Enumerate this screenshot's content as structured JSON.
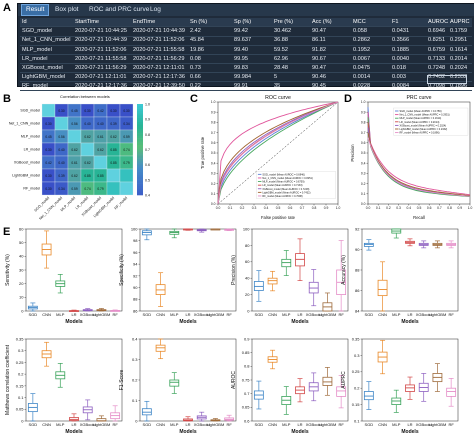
{
  "panels": {
    "a": "A",
    "b": "B",
    "c": "C",
    "d": "D",
    "e": "E"
  },
  "app": {
    "tabs": [
      "Result",
      "Box plot",
      "ROC and PRC curve",
      "Log"
    ],
    "active_tab": "Result",
    "columns": [
      "Id",
      "StartTime",
      "EndTime",
      "Sn (%)",
      "Sp (%)",
      "Pre (%)",
      "Acc (%)",
      "MCC",
      "F1",
      "AUROC",
      "AUPRC"
    ],
    "rows": [
      [
        "SGD_model",
        "2020-07-21 10:44:25",
        "2020-07-21 10:44:39",
        "2.42",
        "99.42",
        "30.462",
        "90.47",
        "0.058",
        "0.0431",
        "0.6946",
        "0.1759"
      ],
      [
        "Net_1_CNN_model",
        "2020-07-21 10:44:39",
        "2020-07-21 11:52:06",
        "45.84",
        "89.637",
        "36.88",
        "86.11",
        "0.2862",
        "0.3566",
        "0.8251",
        "0.2951"
      ],
      [
        "MLP_model",
        "2020-07-21 11:52:06",
        "2020-07-21 11:55:58",
        "19.86",
        "99.40",
        "59.52",
        "91.82",
        "0.1952",
        "0.1885",
        "0.6759",
        "0.1614"
      ],
      [
        "LR_model",
        "2020-07-21 11:55:58",
        "2020-07-21 11:56:29",
        "0.08",
        "99.95",
        "62.96",
        "90.67",
        "0.0067",
        "0.0040",
        "0.7133",
        "0.2014"
      ],
      [
        "XGBoost_model",
        "2020-07-21 11:56:29",
        "2020-07-21 12:11:01",
        "0.73",
        "99.83",
        "28.48",
        "90.47",
        "0.0475",
        "0.018",
        "0.7248",
        "0.2024"
      ],
      [
        "LightGBM_model",
        "2020-07-21 12:11:01",
        "2020-07-21 12:17:36",
        "0.66",
        "99.984",
        "5",
        "90.46",
        "0.0014",
        "0.003",
        "0.7432",
        "0.2332"
      ],
      [
        "RF_model",
        "2020-07-21 12:17:36",
        "2020-07-21 12:39:50",
        "0.22",
        "99.91",
        "35",
        "90.45",
        "0.0228",
        "0.0084",
        "0.7098",
        "0.1896"
      ]
    ]
  },
  "heatmap": {
    "title": "Correlation between models",
    "labels": [
      "SGD_model",
      "Net_1_CNN_model",
      "MLP_model",
      "LR_model",
      "XGBoost_model",
      "LightGBM_model",
      "RF_model"
    ],
    "values": [
      [
        1,
        0.3,
        0.45,
        0.3,
        0.42,
        0.3,
        0.3
      ],
      [
        0.3,
        1,
        0.56,
        0.4,
        0.4,
        0.39,
        0.34
      ],
      [
        0.45,
        0.56,
        1,
        0.62,
        0.61,
        0.62,
        0.59
      ],
      [
        0.3,
        0.4,
        0.62,
        1,
        0.62,
        0.85,
        0.74
      ],
      [
        0.42,
        0.4,
        0.61,
        0.62,
        1,
        0.85,
        0.79
      ],
      [
        0.3,
        0.39,
        0.62,
        0.85,
        0.85,
        1,
        0.95
      ],
      [
        0.3,
        0.34,
        0.59,
        0.74,
        0.79,
        0.95,
        1
      ]
    ],
    "colorbar_ticks": [
      "1.0",
      "0.9",
      "0.8",
      "0.7",
      "0.6",
      "0.5",
      "0.4"
    ]
  },
  "chart_data": [
    {
      "type": "line",
      "title": "ROC curve",
      "xlabel": "False positive rate",
      "ylabel": "True positive rate",
      "xlim": [
        0,
        1
      ],
      "ylim": [
        0,
        1
      ],
      "ticks": [
        "0.0",
        "0.1",
        "0.2",
        "0.3",
        "0.4",
        "0.5",
        "0.6",
        "0.7",
        "0.8",
        "0.9",
        "1.0"
      ],
      "legend_position": "bottom-right",
      "series": [
        {
          "name": "SGD_model (Mean AUROC = 0.6946)",
          "color": "#5b7fd6",
          "auc": 0.6946
        },
        {
          "name": "Net_1_CNN_model (Mean AUROC = 0.8251)",
          "color": "#e0559b",
          "auc": 0.8251
        },
        {
          "name": "MLP_model (Mean AUROC = 0.6759)",
          "color": "#49a860",
          "auc": 0.6759
        },
        {
          "name": "LR_model (Mean AUROC = 0.7133)",
          "color": "#d14a4a",
          "auc": 0.7133
        },
        {
          "name": "XGBoost_model (Mean AUROC = 0.7248)",
          "color": "#8f5fc2",
          "auc": 0.7248
        },
        {
          "name": "LightGBM_model (Mean AUROC = 0.7432)",
          "color": "#a0632f",
          "auc": 0.7432
        },
        {
          "name": "RF_model (Mean AUROC = 0.7098)",
          "color": "#e58ec8",
          "auc": 0.7098
        }
      ]
    },
    {
      "type": "line",
      "title": "PRC curve",
      "xlabel": "Recall",
      "ylabel": "Precision",
      "xlim": [
        0,
        1
      ],
      "ylim": [
        0,
        1
      ],
      "ticks": [
        "0.0",
        "0.1",
        "0.2",
        "0.3",
        "0.4",
        "0.5",
        "0.6",
        "0.7",
        "0.8",
        "0.9",
        "1.0"
      ],
      "legend_position": "top-right",
      "series": [
        {
          "name": "SGD_model (Mean AUPRC = 0.1759)",
          "color": "#5b7fd6",
          "auc": 0.1759
        },
        {
          "name": "Net_1_CNN_model (Mean AUPRC = 0.2951)",
          "color": "#e0559b",
          "auc": 0.2951
        },
        {
          "name": "MLP_model (Mean AUPRC = 0.1614)",
          "color": "#49a860",
          "auc": 0.1614
        },
        {
          "name": "LR_model (Mean AUPRC = 0.2014)",
          "color": "#d14a4a",
          "auc": 0.2014
        },
        {
          "name": "XGBoost_model (Mean AUPRC = 0.2024)",
          "color": "#8f5fc2",
          "auc": 0.2024
        },
        {
          "name": "LightGBM_model (Mean AUPRC = 0.2332)",
          "color": "#a0632f",
          "auc": 0.2332
        },
        {
          "name": "RF_model (Mean AUPRC = 0.1896)",
          "color": "#e58ec8",
          "auc": 0.1896
        }
      ]
    }
  ],
  "boxplots": {
    "categories": [
      "SGD",
      "CNN",
      "MLP",
      "LR",
      "XGBoost",
      "LightGBM",
      "RF"
    ],
    "xlabel": "Models",
    "colors": [
      "#3f86c7",
      "#e98a2a",
      "#3aa35b",
      "#d24848",
      "#8d5fc0",
      "#9e6a3a",
      "#e58ec8"
    ],
    "plots": [
      {
        "ylabel": "Sensitivity (%)",
        "ylim": [
          0,
          60
        ],
        "ticks": [
          0,
          10,
          20,
          30,
          40,
          50,
          60
        ],
        "medians": [
          2.5,
          45,
          20,
          0.1,
          0.7,
          0.6,
          0.2
        ],
        "q": [
          [
            1.5,
            3.5
          ],
          [
            41,
            49
          ],
          [
            18,
            22
          ],
          [
            0,
            0.3
          ],
          [
            0.4,
            1
          ],
          [
            0.3,
            1
          ],
          [
            0.1,
            0.4
          ]
        ]
      },
      {
        "ylabel": "Specificity (%)",
        "ylim": [
          86,
          100
        ],
        "ticks": [
          86,
          88,
          90,
          92,
          94,
          96,
          98,
          100
        ],
        "medians": [
          99.4,
          89.6,
          99.4,
          99.95,
          99.8,
          99.98,
          99.9
        ],
        "q": [
          [
            99,
            99.7
          ],
          [
            88.8,
            90.5
          ],
          [
            99.1,
            99.6
          ],
          [
            99.9,
            100
          ],
          [
            99.7,
            99.9
          ],
          [
            99.95,
            100
          ],
          [
            99.85,
            99.95
          ]
        ]
      },
      {
        "ylabel": "Precision (%)",
        "ylim": [
          0,
          100
        ],
        "ticks": [
          0,
          20,
          40,
          60,
          80,
          100
        ],
        "medians": [
          30,
          37,
          59,
          63,
          28,
          5,
          35
        ],
        "q": [
          [
            25,
            36
          ],
          [
            33,
            40
          ],
          [
            54,
            63
          ],
          [
            55,
            70
          ],
          [
            22,
            35
          ],
          [
            0,
            10
          ],
          [
            20,
            50
          ]
        ]
      },
      {
        "ylabel": "Accuracy (%)",
        "ylim": [
          84,
          92
        ],
        "ticks": [
          84,
          86,
          88,
          90,
          92
        ],
        "medians": [
          90.5,
          86.1,
          91.8,
          90.7,
          90.5,
          90.5,
          90.5
        ],
        "q": [
          [
            90.3,
            90.6
          ],
          [
            85.5,
            87
          ],
          [
            91.6,
            92
          ],
          [
            90.6,
            90.8
          ],
          [
            90.4,
            90.6
          ],
          [
            90.4,
            90.6
          ],
          [
            90.4,
            90.6
          ]
        ]
      },
      {
        "ylabel": "Matthews correlation coefficient",
        "ylim": [
          0,
          0.35
        ],
        "ticks": [
          0,
          0.05,
          0.1,
          0.15,
          0.2,
          0.25,
          0.3,
          0.35
        ],
        "medians": [
          0.058,
          0.286,
          0.195,
          0.007,
          0.048,
          0.001,
          0.023
        ],
        "q": [
          [
            0.04,
            0.075
          ],
          [
            0.27,
            0.3
          ],
          [
            0.18,
            0.21
          ],
          [
            0.002,
            0.015
          ],
          [
            0.035,
            0.06
          ],
          [
            0,
            0.01
          ],
          [
            0.01,
            0.035
          ]
        ]
      },
      {
        "ylabel": "F1-Score",
        "ylim": [
          0,
          0.4
        ],
        "ticks": [
          0,
          0.1,
          0.2,
          0.3,
          0.4
        ],
        "medians": [
          0.043,
          0.357,
          0.189,
          0.004,
          0.018,
          0.003,
          0.008
        ],
        "q": [
          [
            0.03,
            0.06
          ],
          [
            0.34,
            0.37
          ],
          [
            0.17,
            0.2
          ],
          [
            0.001,
            0.01
          ],
          [
            0.01,
            0.025
          ],
          [
            0.001,
            0.006
          ],
          [
            0.004,
            0.015
          ]
        ]
      },
      {
        "ylabel": "AUROC",
        "ylim": [
          0.6,
          0.9
        ],
        "ticks": [
          0.6,
          0.65,
          0.7,
          0.75,
          0.8,
          0.85,
          0.9
        ],
        "medians": [
          0.695,
          0.825,
          0.676,
          0.713,
          0.725,
          0.743,
          0.71
        ],
        "q": [
          [
            0.68,
            0.71
          ],
          [
            0.815,
            0.835
          ],
          [
            0.66,
            0.69
          ],
          [
            0.7,
            0.725
          ],
          [
            0.71,
            0.74
          ],
          [
            0.73,
            0.76
          ],
          [
            0.69,
            0.725
          ]
        ]
      },
      {
        "ylabel": "AUPRC",
        "ylim": [
          0.1,
          0.35
        ],
        "ticks": [
          0.1,
          0.15,
          0.2,
          0.25,
          0.3,
          0.35
        ],
        "medians": [
          0.176,
          0.295,
          0.161,
          0.201,
          0.202,
          0.233,
          0.19
        ],
        "q": [
          [
            0.165,
            0.19
          ],
          [
            0.28,
            0.31
          ],
          [
            0.15,
            0.17
          ],
          [
            0.19,
            0.21
          ],
          [
            0.19,
            0.215
          ],
          [
            0.22,
            0.245
          ],
          [
            0.175,
            0.2
          ]
        ]
      }
    ]
  }
}
